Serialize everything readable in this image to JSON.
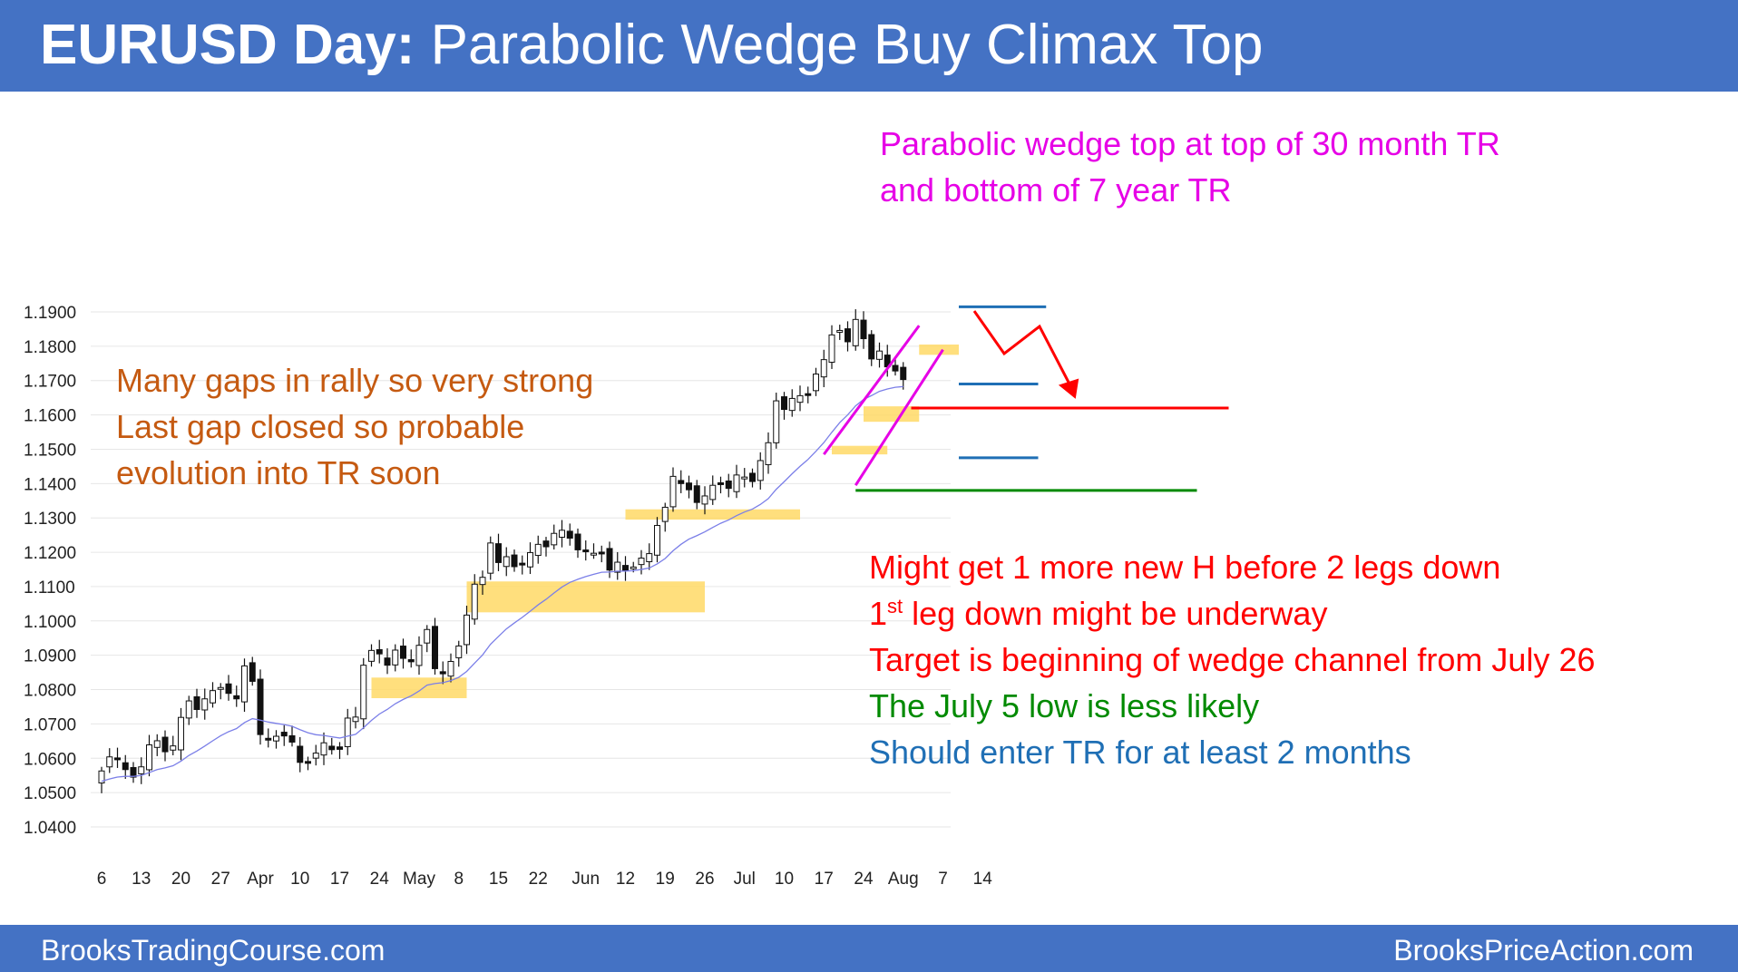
{
  "title": {
    "bold": "EURUSD Day:",
    "rest": "Parabolic Wedge Buy Climax Top"
  },
  "footer": {
    "left": "BrooksTradingCourse.com",
    "right": "BrooksPriceAction.com"
  },
  "annotations": {
    "magenta": [
      "Parabolic wedge top at top of 30 month TR",
      "and bottom of 7 year TR"
    ],
    "orange": [
      "Many gaps in rally so very strong",
      "Last gap closed so probable",
      "evolution into TR soon"
    ],
    "red1": "Might get 1 more new H before 2 legs down",
    "red2_base": "1",
    "red2_sup": "st",
    "red2_rest": " leg down might be underway",
    "red3": "Target is beginning of wedge channel from July 26",
    "green": "The July 5 low is less likely",
    "blue": "Should enter TR for at least 2 months"
  },
  "colors": {
    "bar": "#4472c4",
    "magenta": "#e600e6",
    "orange": "#c55a11",
    "red": "#ff0000",
    "green": "#008a00",
    "blue": "#1f6fb5",
    "gap": "#ffd966",
    "ema": "#7b7fe8"
  },
  "chart_data": {
    "type": "candlestick",
    "ylim": [
      1.04,
      1.19
    ],
    "yticks": [
      "1.1900",
      "1.1800",
      "1.1700",
      "1.1600",
      "1.1500",
      "1.1400",
      "1.1300",
      "1.1200",
      "1.1100",
      "1.1000",
      "1.0900",
      "1.0800",
      "1.0700",
      "1.0600",
      "1.0500",
      "1.0400"
    ],
    "xticks": [
      "6",
      "13",
      "20",
      "27",
      "Apr",
      "10",
      "17",
      "24",
      "May",
      "8",
      "15",
      "22",
      "Jun",
      "12",
      "19",
      "26",
      "Jul",
      "10",
      "17",
      "24",
      "Aug",
      "7",
      "14"
    ],
    "xtick_positions": [
      0,
      5,
      10,
      15,
      20,
      25,
      30,
      35,
      40,
      45,
      50,
      55,
      61,
      66,
      71,
      76,
      81,
      86,
      91,
      96,
      101,
      106,
      111
    ],
    "close": [
      1.0563,
      1.0604,
      1.0598,
      1.0567,
      1.0545,
      1.0575,
      1.0639,
      1.0651,
      1.0619,
      1.0636,
      1.0719,
      1.0767,
      1.0742,
      1.0773,
      1.0797,
      1.0806,
      1.0789,
      1.0773,
      1.0869,
      1.0824,
      1.0669,
      1.0654,
      1.0664,
      1.0665,
      1.0647,
      1.0588,
      1.0589,
      1.0615,
      1.0645,
      1.0625,
      1.0626,
      1.0717,
      1.072,
      1.0871,
      1.0914,
      1.0904,
      1.0871,
      1.0915,
      1.0891,
      1.0881,
      1.0929,
      1.0975,
      1.0861,
      1.0846,
      1.0882,
      1.0927,
      1.1017,
      1.1107,
      1.1127,
      1.1227,
      1.117,
      1.1187,
      1.1158,
      1.1165,
      1.1199,
      1.1223,
      1.1216,
      1.1255,
      1.1264,
      1.1241,
      1.1207,
      1.1205,
      1.1197,
      1.12,
      1.1148,
      1.1171,
      1.1146,
      1.1157,
      1.1183,
      1.1196,
      1.1278,
      1.1331,
      1.1421,
      1.14,
      1.1382,
      1.1345,
      1.1364,
      1.1395,
      1.1399,
      1.1386,
      1.1425,
      1.1419,
      1.1406,
      1.1467,
      1.1519,
      1.1641,
      1.1616,
      1.1648,
      1.1656,
      1.1661,
      1.1719,
      1.1761,
      1.1833,
      1.1846,
      1.1813,
      1.1878,
      1.1822,
      1.1763,
      1.1786,
      1.174,
      1.1728,
      1.1703
    ],
    "series_note": "daily EURUSD candles, Mar 6 – Aug 14 (approximate)",
    "ema_period": 20,
    "gap_zones": [
      {
        "x": [
          34,
          46
        ],
        "y": [
          1.0775,
          1.0835
        ]
      },
      {
        "x": [
          46,
          76
        ],
        "y": [
          1.1025,
          1.1115
        ]
      },
      {
        "x": [
          66,
          88
        ],
        "y": [
          1.1295,
          1.1325
        ]
      },
      {
        "x": [
          92,
          99
        ],
        "y": [
          1.1485,
          1.151
        ]
      },
      {
        "x": [
          96,
          103
        ],
        "y": [
          1.158,
          1.1625
        ]
      },
      {
        "x": [
          103,
          108
        ],
        "y": [
          1.1775,
          1.1805
        ]
      }
    ],
    "lines": [
      {
        "color": "blue",
        "x": [
          108,
          119
        ],
        "y": 1.1915
      },
      {
        "color": "blue",
        "x": [
          108,
          118
        ],
        "y": 1.169
      },
      {
        "color": "blue",
        "x": [
          108,
          118
        ],
        "y": 1.1475
      },
      {
        "color": "red",
        "x": [
          102,
          142
        ],
        "y": 1.162
      },
      {
        "color": "green",
        "x": [
          95,
          138
        ],
        "y": 1.138
      }
    ]
  }
}
